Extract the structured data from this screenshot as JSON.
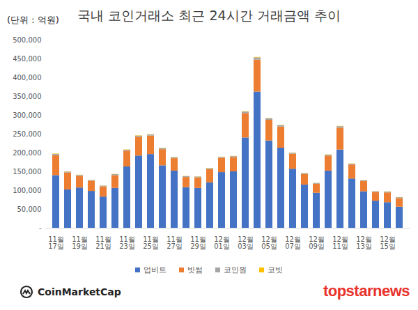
{
  "chart_data": {
    "type": "bar",
    "title": "국내 코인거래소 최근 24시간 거래금액 추이",
    "unit_label": "(단위 : 억원)",
    "source": "CoinMarketCap",
    "watermark": "topstarnews",
    "stacked": true,
    "legend": "bottom",
    "grid": false,
    "categories": [
      "11월 17일",
      null,
      "11월 19일",
      null,
      "11월 21일",
      null,
      "11월 23일",
      null,
      "11월 25일",
      null,
      "11월 27일",
      null,
      "11월 29일",
      null,
      "12월 01일",
      null,
      "12월 03일",
      null,
      "12월 05일",
      null,
      "12월 07일",
      null,
      "12월 09일",
      null,
      "12월 11일",
      null,
      "12월 13일",
      null,
      "12월 15일",
      null
    ],
    "series": [
      {
        "name": "업비트",
        "color": "#4472c4",
        "values": [
          140000,
          102000,
          107000,
          98000,
          83000,
          106000,
          163000,
          192000,
          196000,
          166000,
          152000,
          108000,
          106000,
          121000,
          148000,
          150000,
          240000,
          362000,
          232000,
          213000,
          157000,
          115000,
          93000,
          152000,
          208000,
          131000,
          97000,
          72000,
          68000,
          56000
        ]
      },
      {
        "name": "빗썸",
        "color": "#ed7d31",
        "values": [
          53000,
          45000,
          31000,
          27000,
          27000,
          34000,
          42000,
          50000,
          49000,
          43000,
          33000,
          27000,
          28000,
          35000,
          38000,
          38000,
          65000,
          85000,
          55000,
          56000,
          40000,
          28000,
          24000,
          40000,
          58000,
          37000,
          27000,
          23000,
          26000,
          23000
        ]
      },
      {
        "name": "코인원",
        "color": "#a5a5a5",
        "values": [
          3500,
          2500,
          2500,
          2300,
          2200,
          2500,
          2500,
          3000,
          3000,
          3000,
          2500,
          2300,
          2300,
          2500,
          2500,
          2500,
          4000,
          6000,
          4000,
          4000,
          2500,
          2300,
          2200,
          2500,
          4000,
          2500,
          2300,
          2200,
          2200,
          2200
        ]
      },
      {
        "name": "코빗",
        "color": "#ffc000",
        "values": [
          800,
          600,
          600,
          500,
          500,
          600,
          700,
          800,
          800,
          700,
          600,
          500,
          500,
          600,
          600,
          600,
          900,
          1200,
          800,
          800,
          600,
          500,
          500,
          600,
          800,
          600,
          500,
          500,
          500,
          500
        ]
      }
    ],
    "ylim": [
      0,
      500000
    ],
    "yticks": [
      {
        "value": 0,
        "label": "-"
      },
      {
        "value": 50000,
        "label": "50,000"
      },
      {
        "value": 100000,
        "label": "100,000"
      },
      {
        "value": 150000,
        "label": "150,000"
      },
      {
        "value": 200000,
        "label": "200,000"
      },
      {
        "value": 250000,
        "label": "250,000"
      },
      {
        "value": 300000,
        "label": "300,000"
      },
      {
        "value": 350000,
        "label": "350,000"
      },
      {
        "value": 400000,
        "label": "400,000"
      },
      {
        "value": 450000,
        "label": "450,000"
      },
      {
        "value": 500000,
        "label": "500,000"
      }
    ]
  }
}
